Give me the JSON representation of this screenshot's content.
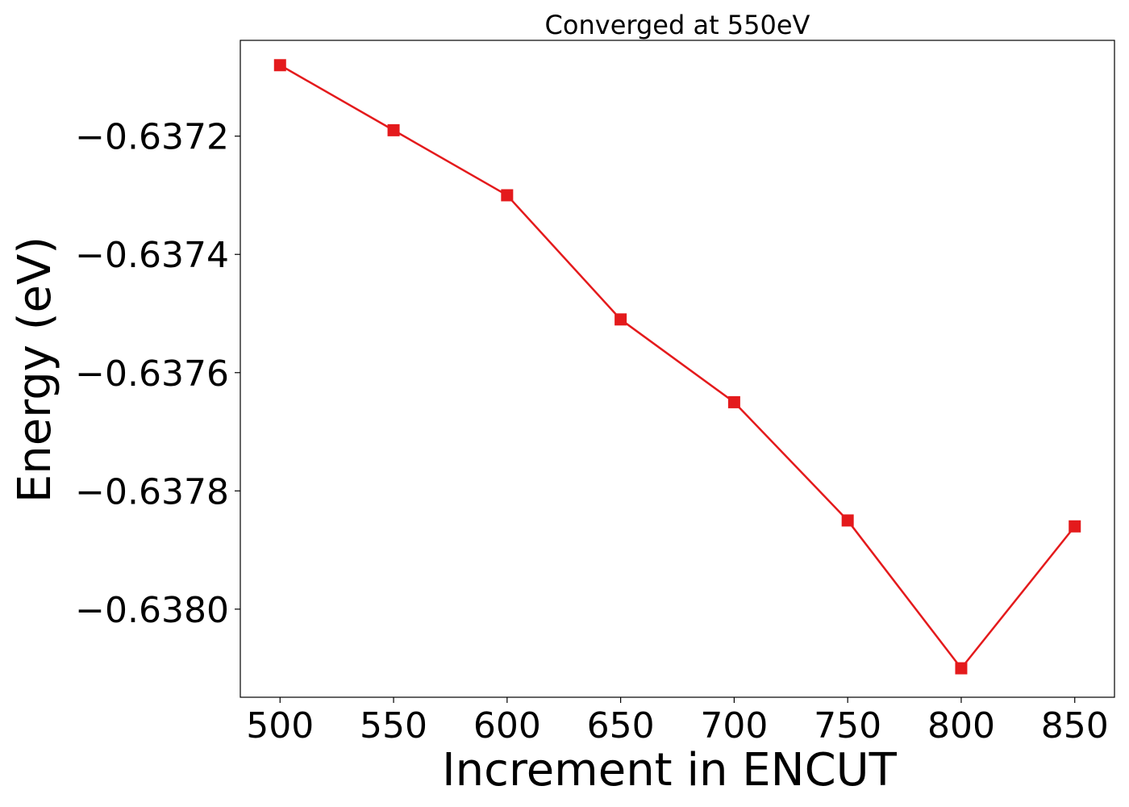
{
  "chart_data": {
    "type": "line",
    "title": "Converged at 550eV",
    "xlabel": "Increment in ENCUT",
    "ylabel": "Energy (eV)",
    "x": [
      500,
      550,
      600,
      650,
      700,
      750,
      800,
      850
    ],
    "series": [
      {
        "values": [
          -0.63708,
          -0.63719,
          -0.6373,
          -0.63751,
          -0.63765,
          -0.63785,
          -0.6381,
          -0.63786
        ],
        "color": "#e41a1c",
        "marker": "square"
      }
    ],
    "xticks": [
      500,
      550,
      600,
      650,
      700,
      750,
      800,
      850
    ],
    "xtick_labels": [
      "500",
      "550",
      "600",
      "650",
      "700",
      "750",
      "800",
      "850"
    ],
    "yticks": [
      -0.6372,
      -0.6374,
      -0.6376,
      -0.6378,
      -0.638
    ],
    "ytick_labels": [
      "−0.6372",
      "−0.6374",
      "−0.6376",
      "−0.6378",
      "−0.6380"
    ],
    "xlim": [
      482.5,
      867.5
    ],
    "ylim": [
      -0.638149,
      -0.637038
    ],
    "grid": false,
    "legend": false
  }
}
